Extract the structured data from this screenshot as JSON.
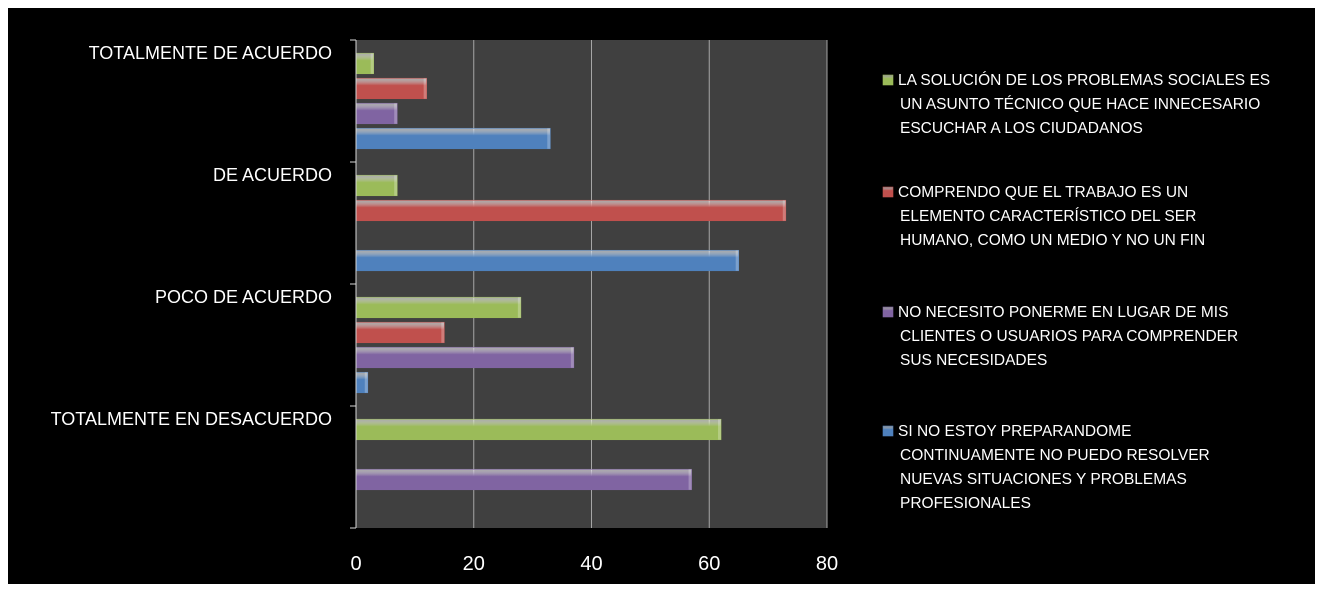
{
  "chart_data": {
    "type": "bar",
    "orientation": "horizontal",
    "title": "",
    "xlabel": "",
    "ylabel": "",
    "xlim": [
      0,
      80
    ],
    "x_ticks": [
      "0",
      "20",
      "40",
      "60",
      "80"
    ],
    "categories": [
      "TOTALMENTE DE ACUERDO",
      "DE ACUERDO",
      "POCO DE ACUERDO",
      "TOTALMENTE EN DESACUERDO"
    ],
    "grid": true,
    "legend_position": "right",
    "series": [
      {
        "name": "SI NO ESTOY PREPARANDOME CONTINUAMENTE NO PUEDO RESOLVER NUEVAS SITUACIONES Y PROBLEMAS PROFESIONALES",
        "legend_lines": [
          "SI NO ESTOY PREPARANDOME",
          "CONTINUAMENTE NO PUEDO RESOLVER",
          "NUEVAS SITUACIONES Y PROBLEMAS",
          "PROFESIONALES"
        ],
        "color": "#4f81bd",
        "values": [
          33,
          65,
          2,
          0
        ]
      },
      {
        "name": "NO NECESITO PONERME EN LUGAR DE MIS CLIENTES O USUARIOS PARA COMPRENDER SUS NECESIDADES",
        "legend_lines": [
          "NO NECESITO PONERME EN LUGAR DE MIS",
          "CLIENTES O USUARIOS PARA COMPRENDER",
          "SUS NECESIDADES"
        ],
        "color": "#8064a2",
        "values": [
          7,
          0,
          37,
          57
        ]
      },
      {
        "name": "COMPRENDO QUE EL TRABAJO ES UN ELEMENTO CARACTERÍSTICO DEL SER HUMANO, COMO UN MEDIO Y NO UN FIN",
        "legend_lines": [
          "COMPRENDO QUE EL TRABAJO ES UN",
          "ELEMENTO CARACTERÍSTICO DEL SER",
          "HUMANO, COMO UN MEDIO Y NO UN FIN"
        ],
        "color": "#c0504d",
        "values": [
          12,
          73,
          15,
          0
        ]
      },
      {
        "name": "LA SOLUCIÓN DE LOS PROBLEMAS SOCIALES ES UN ASUNTO TÉCNICO QUE HACE INNECESARIO ESCUCHAR A LOS CIUDADANOS",
        "legend_lines": [
          "LA SOLUCIÓN DE LOS PROBLEMAS SOCIALES ES",
          "UN ASUNTO TÉCNICO QUE HACE INNECESARIO",
          "ESCUCHAR A LOS CIUDADANOS"
        ],
        "color": "#9bbb59",
        "values": [
          3,
          7,
          28,
          62
        ]
      }
    ]
  }
}
